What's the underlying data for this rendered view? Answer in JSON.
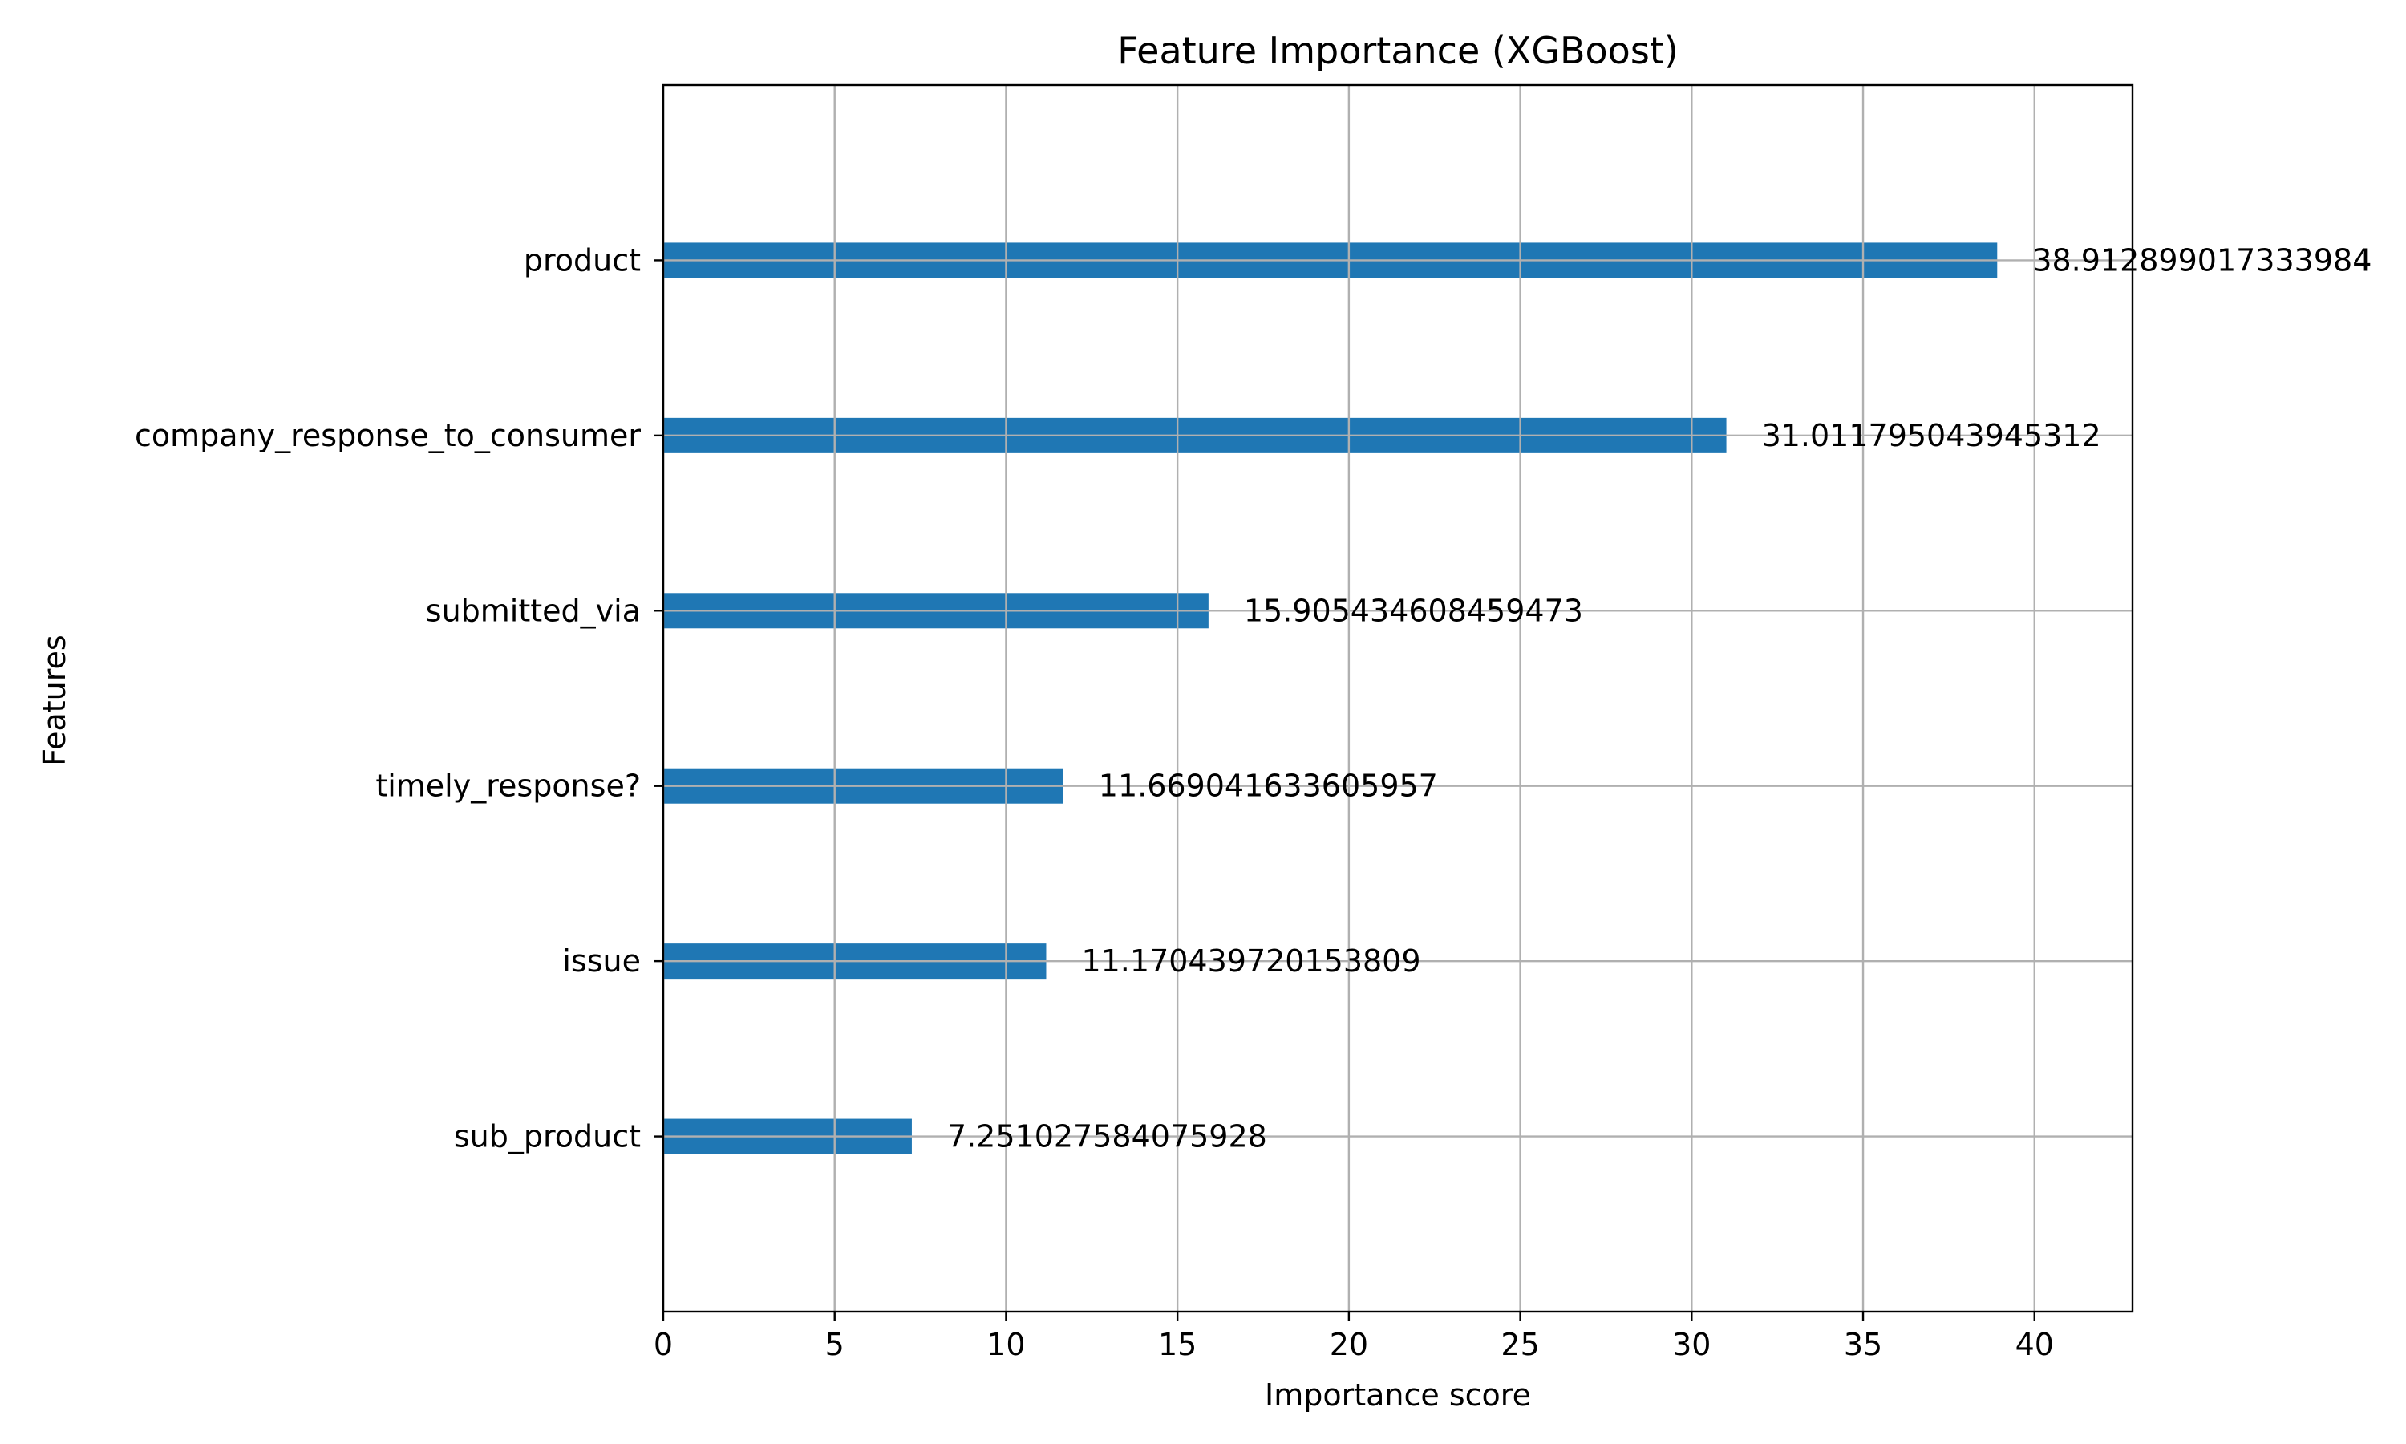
{
  "chart_data": {
    "type": "bar",
    "orientation": "horizontal",
    "title": "Feature Importance (XGBoost)",
    "xlabel": "Importance score",
    "ylabel": "Features",
    "categories": [
      "sub_product",
      "issue",
      "timely_response?",
      "submitted_via",
      "company_response_to_consumer",
      "product"
    ],
    "values": [
      7.251027584075928,
      11.170439720153809,
      11.669041633605957,
      15.905434608459473,
      31.011795043945312,
      38.912899017333984
    ],
    "value_labels": [
      "7.251027584075928",
      "11.170439720153809",
      "11.669041633605957",
      "15.905434608459473",
      "31.011795043945312",
      "38.912899017333984"
    ],
    "xlim": [
      0,
      42.86
    ],
    "xticks": [
      0,
      5,
      10,
      15,
      20,
      25,
      30,
      35,
      40
    ],
    "grid": true,
    "bar_color": "#1f77b4",
    "grid_color": "#b0b0b0"
  }
}
